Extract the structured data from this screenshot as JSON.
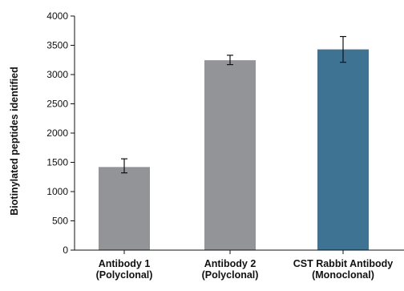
{
  "chart_data": {
    "type": "bar",
    "title": "",
    "xlabel": "",
    "ylabel": "Biotinylated peptides identified",
    "ylim": [
      0,
      4000
    ],
    "y_ticks": [
      0,
      500,
      1000,
      1500,
      2000,
      2500,
      3000,
      3500,
      4000
    ],
    "grid": false,
    "legend": "none",
    "categories": [
      {
        "line1": "Antibody 1",
        "line2": "(Polyclonal)"
      },
      {
        "line1": "Antibody 2",
        "line2": "(Polyclonal)"
      },
      {
        "line1": "CST Rabbit Antibody",
        "line2": "(Monoclonal)"
      }
    ],
    "values": [
      1420,
      3245,
      3430
    ],
    "error_bars": [
      {
        "low": 1320,
        "high": 1560
      },
      {
        "low": 3170,
        "high": 3330
      },
      {
        "low": 3210,
        "high": 3650
      }
    ],
    "bar_colors": [
      "#939498",
      "#939498",
      "#3f7393"
    ]
  }
}
